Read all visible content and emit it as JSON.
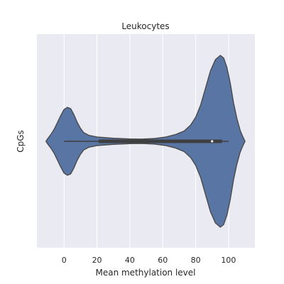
{
  "chart_data": {
    "type": "violin",
    "title": "Leukocytes",
    "xlabel": "Mean methylation level",
    "ylabel": "CpGs",
    "xlim": [
      -16.5,
      116
    ],
    "xticks": [
      0,
      20,
      40,
      60,
      80,
      100
    ],
    "grid": true,
    "orientation": "horizontal",
    "series": [
      {
        "density_profile": [
          [
            -11,
            0.0
          ],
          [
            -10,
            0.03
          ],
          [
            -8,
            0.08
          ],
          [
            -6,
            0.14
          ],
          [
            -4,
            0.22
          ],
          [
            -2,
            0.3
          ],
          [
            0,
            0.37
          ],
          [
            2,
            0.395
          ],
          [
            4,
            0.38
          ],
          [
            6,
            0.31
          ],
          [
            8,
            0.22
          ],
          [
            10,
            0.15
          ],
          [
            12,
            0.1
          ],
          [
            15,
            0.07
          ],
          [
            20,
            0.05
          ],
          [
            30,
            0.035
          ],
          [
            40,
            0.027
          ],
          [
            47,
            0.025
          ],
          [
            55,
            0.032
          ],
          [
            62,
            0.05
          ],
          [
            68,
            0.08
          ],
          [
            73,
            0.12
          ],
          [
            77,
            0.19
          ],
          [
            80,
            0.28
          ],
          [
            83,
            0.42
          ],
          [
            86,
            0.62
          ],
          [
            89,
            0.82
          ],
          [
            92,
            0.95
          ],
          [
            95,
            1.0
          ],
          [
            97,
            0.97
          ],
          [
            99,
            0.86
          ],
          [
            101,
            0.68
          ],
          [
            103,
            0.45
          ],
          [
            105,
            0.27
          ],
          [
            107,
            0.13
          ],
          [
            108.5,
            0.06
          ],
          [
            110,
            0.0
          ]
        ],
        "box": {
          "q1": 21,
          "median": 90,
          "q3": 96,
          "whisker_low": 0,
          "whisker_high": 100
        }
      }
    ]
  },
  "colors": {
    "plot_background": "#eaeaf2",
    "grid": "#ffffff",
    "violin_fill": "#5975a4",
    "violin_edge": "#4a4a4a",
    "box": "#3f3f3f",
    "median_marker": "#ffffff"
  }
}
